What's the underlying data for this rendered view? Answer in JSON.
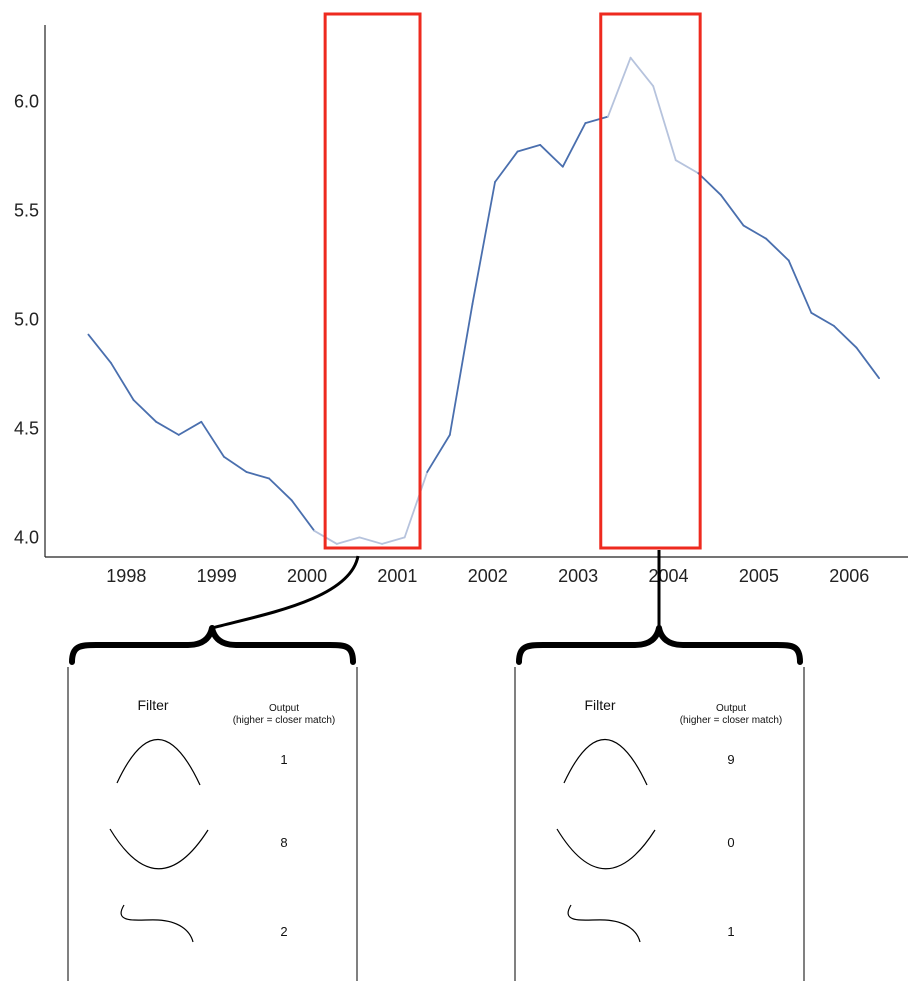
{
  "chart_data": {
    "type": "line",
    "x": [
      1997.58,
      1997.83,
      1998.08,
      1998.33,
      1998.58,
      1998.83,
      1999.08,
      1999.33,
      1999.58,
      1999.83,
      2000.08,
      2000.33,
      2000.58,
      2000.83,
      2001.08,
      2001.33,
      2001.58,
      2001.83,
      2002.08,
      2002.33,
      2002.58,
      2002.83,
      2003.08,
      2003.33,
      2003.58,
      2003.83,
      2004.08,
      2004.33,
      2004.58,
      2004.83,
      2005.08,
      2005.33,
      2005.58,
      2005.83,
      2006.08,
      2006.33
    ],
    "y": [
      4.93,
      4.8,
      4.63,
      4.53,
      4.47,
      4.53,
      4.37,
      4.3,
      4.27,
      4.17,
      4.03,
      3.97,
      4.0,
      3.97,
      4.0,
      4.3,
      4.47,
      5.07,
      5.63,
      5.77,
      5.8,
      5.7,
      5.9,
      5.93,
      6.2,
      6.07,
      5.73,
      5.67,
      5.57,
      5.43,
      5.37,
      5.27,
      5.03,
      4.97,
      4.87,
      4.73
    ],
    "xticks": [
      "1998",
      "1999",
      "2000",
      "2001",
      "2002",
      "2003",
      "2004",
      "2005",
      "2006"
    ],
    "xtick_values": [
      1998,
      1999,
      2000,
      2001,
      2002,
      2003,
      2004,
      2005,
      2006
    ],
    "yticks": [
      "4.0",
      "4.5",
      "5.0",
      "5.5",
      "6.0"
    ],
    "ytick_values": [
      4.0,
      4.5,
      5.0,
      5.5,
      6.0
    ],
    "xlim": [
      1997.1,
      2006.65
    ],
    "ylim": [
      3.91,
      6.35
    ],
    "line_color": "#4a6fae",
    "highlight_line_color": "#b6c3dd",
    "window_color": "#ee2a1f",
    "windows": [
      {
        "x_start": 2000.2,
        "x_end": 2001.25
      },
      {
        "x_start": 2003.25,
        "x_end": 2004.35
      }
    ],
    "grid": false,
    "legend": "none"
  },
  "panels": [
    {
      "filter_header": "Filter",
      "output_header": "Output",
      "output_subheader": "(higher = closer match)",
      "rows": [
        {
          "shape": "arch-up-curve",
          "output": "1"
        },
        {
          "shape": "arch-down-curve",
          "output": "8"
        },
        {
          "shape": "s-curve",
          "output": "2"
        }
      ]
    },
    {
      "filter_header": "Filter",
      "output_header": "Output",
      "output_subheader": "(higher = closer match)",
      "rows": [
        {
          "shape": "arch-up-curve",
          "output": "9"
        },
        {
          "shape": "arch-down-curve",
          "output": "0"
        },
        {
          "shape": "s-curve",
          "output": "1"
        }
      ]
    }
  ]
}
